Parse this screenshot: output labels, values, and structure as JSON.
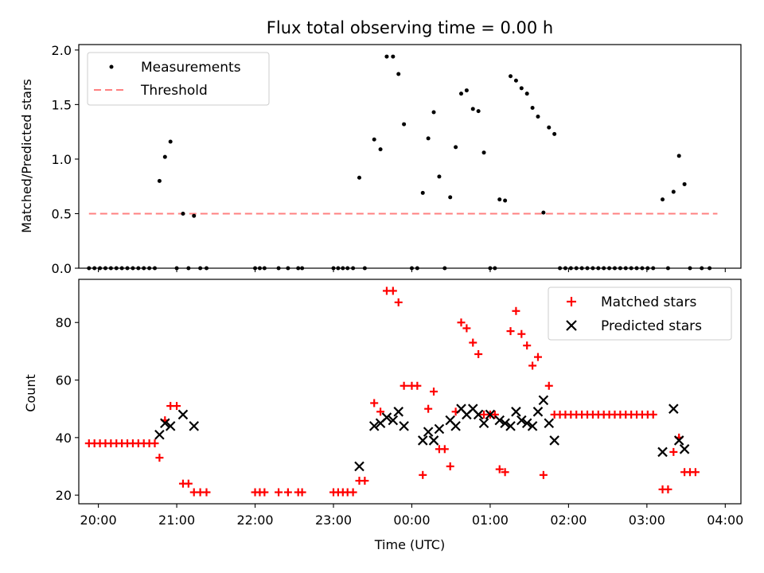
{
  "chart_data": [
    {
      "type": "scatter",
      "title": "Flux total observing time = 0.00 h",
      "ylabel": "Matched/Predicted stars",
      "xlim": [
        -0.25,
        8.2
      ],
      "ylim": [
        0,
        2.05
      ],
      "yticks": [
        0.0,
        0.5,
        1.0,
        1.5,
        2.0
      ],
      "ytick_labels": [
        "0.0",
        "0.5",
        "1.0",
        "1.5",
        "2.0"
      ],
      "xticks": [
        0,
        1,
        2,
        3,
        4,
        5,
        6,
        7,
        8
      ],
      "legend": {
        "placement": "upper-left",
        "entries": [
          "Measurements",
          "Threshold"
        ]
      },
      "threshold": {
        "name": "Threshold",
        "value": 0.5,
        "x_range": [
          -0.12,
          7.9
        ],
        "color": "#ff8080"
      },
      "series": [
        {
          "name": "Measurements",
          "color": "#000000",
          "points": [
            [
              -0.12,
              0
            ],
            [
              -0.05,
              0
            ],
            [
              0.02,
              0
            ],
            [
              0.09,
              0
            ],
            [
              0.16,
              0
            ],
            [
              0.23,
              0
            ],
            [
              0.3,
              0
            ],
            [
              0.37,
              0
            ],
            [
              0.44,
              0
            ],
            [
              0.51,
              0
            ],
            [
              0.58,
              0
            ],
            [
              0.65,
              0
            ],
            [
              0.72,
              0
            ],
            [
              0.78,
              0.8
            ],
            [
              0.85,
              1.02
            ],
            [
              0.92,
              1.16
            ],
            [
              1.0,
              0
            ],
            [
              1.08,
              0.5
            ],
            [
              1.15,
              0
            ],
            [
              1.22,
              0.48
            ],
            [
              1.3,
              0
            ],
            [
              1.38,
              0
            ],
            [
              2.0,
              0
            ],
            [
              2.06,
              0
            ],
            [
              2.12,
              0
            ],
            [
              2.3,
              0
            ],
            [
              2.42,
              0
            ],
            [
              2.55,
              0
            ],
            [
              2.6,
              0
            ],
            [
              3.0,
              0
            ],
            [
              3.06,
              0
            ],
            [
              3.12,
              0
            ],
            [
              3.18,
              0
            ],
            [
              3.25,
              0
            ],
            [
              3.33,
              0.83
            ],
            [
              3.4,
              0
            ],
            [
              3.52,
              1.18
            ],
            [
              3.6,
              1.09
            ],
            [
              3.68,
              1.94
            ],
            [
              3.76,
              1.94
            ],
            [
              3.83,
              1.78
            ],
            [
              3.9,
              1.32
            ],
            [
              4.0,
              0
            ],
            [
              4.07,
              0
            ],
            [
              4.14,
              0.69
            ],
            [
              4.21,
              1.19
            ],
            [
              4.28,
              1.43
            ],
            [
              4.35,
              0.84
            ],
            [
              4.42,
              0
            ],
            [
              4.49,
              0.65
            ],
            [
              4.56,
              1.11
            ],
            [
              4.63,
              1.6
            ],
            [
              4.7,
              1.63
            ],
            [
              4.78,
              1.46
            ],
            [
              4.85,
              1.44
            ],
            [
              4.92,
              1.06
            ],
            [
              5.0,
              0
            ],
            [
              5.06,
              0
            ],
            [
              5.12,
              0.63
            ],
            [
              5.19,
              0.62
            ],
            [
              5.26,
              1.76
            ],
            [
              5.33,
              1.72
            ],
            [
              5.4,
              1.65
            ],
            [
              5.47,
              1.6
            ],
            [
              5.54,
              1.47
            ],
            [
              5.61,
              1.39
            ],
            [
              5.68,
              0.51
            ],
            [
              5.75,
              1.29
            ],
            [
              5.82,
              1.23
            ],
            [
              5.89,
              0
            ],
            [
              5.96,
              0
            ],
            [
              6.03,
              0
            ],
            [
              6.1,
              0
            ],
            [
              6.17,
              0
            ],
            [
              6.24,
              0
            ],
            [
              6.31,
              0
            ],
            [
              6.38,
              0
            ],
            [
              6.45,
              0
            ],
            [
              6.52,
              0
            ],
            [
              6.59,
              0
            ],
            [
              6.66,
              0
            ],
            [
              6.73,
              0
            ],
            [
              6.8,
              0
            ],
            [
              6.87,
              0
            ],
            [
              6.94,
              0
            ],
            [
              7.01,
              0
            ],
            [
              7.08,
              0
            ],
            [
              7.2,
              0.63
            ],
            [
              7.27,
              0
            ],
            [
              7.34,
              0.7
            ],
            [
              7.41,
              1.03
            ],
            [
              7.48,
              0.77
            ],
            [
              7.55,
              0
            ],
            [
              7.7,
              0
            ],
            [
              7.8,
              0
            ]
          ]
        }
      ]
    },
    {
      "type": "scatter",
      "ylabel": "Count",
      "xlabel": "Time (UTC)",
      "xlim": [
        -0.25,
        8.2
      ],
      "ylim": [
        17,
        95
      ],
      "yticks": [
        20,
        40,
        60,
        80
      ],
      "ytick_labels": [
        "20",
        "40",
        "60",
        "80"
      ],
      "xticks": [
        0,
        1,
        2,
        3,
        4,
        5,
        6,
        7,
        8
      ],
      "xtick_labels": [
        "20:00",
        "21:00",
        "22:00",
        "23:00",
        "00:00",
        "01:00",
        "02:00",
        "03:00",
        "04:00"
      ],
      "legend": {
        "placement": "upper-right",
        "entries": [
          "Matched stars",
          "Predicted stars"
        ]
      },
      "series": [
        {
          "name": "Matched stars",
          "marker": "plus",
          "color": "#ff0000",
          "points": [
            [
              -0.12,
              38
            ],
            [
              -0.05,
              38
            ],
            [
              0.02,
              38
            ],
            [
              0.09,
              38
            ],
            [
              0.16,
              38
            ],
            [
              0.23,
              38
            ],
            [
              0.3,
              38
            ],
            [
              0.37,
              38
            ],
            [
              0.44,
              38
            ],
            [
              0.51,
              38
            ],
            [
              0.58,
              38
            ],
            [
              0.65,
              38
            ],
            [
              0.72,
              38
            ],
            [
              0.78,
              33
            ],
            [
              0.85,
              46
            ],
            [
              0.92,
              51
            ],
            [
              1.0,
              51
            ],
            [
              1.08,
              24
            ],
            [
              1.15,
              24
            ],
            [
              1.22,
              21
            ],
            [
              1.3,
              21
            ],
            [
              1.38,
              21
            ],
            [
              2.0,
              21
            ],
            [
              2.06,
              21
            ],
            [
              2.12,
              21
            ],
            [
              2.3,
              21
            ],
            [
              2.42,
              21
            ],
            [
              2.55,
              21
            ],
            [
              2.6,
              21
            ],
            [
              3.0,
              21
            ],
            [
              3.06,
              21
            ],
            [
              3.12,
              21
            ],
            [
              3.18,
              21
            ],
            [
              3.25,
              21
            ],
            [
              3.33,
              25
            ],
            [
              3.4,
              25
            ],
            [
              3.52,
              52
            ],
            [
              3.6,
              49
            ],
            [
              3.68,
              91
            ],
            [
              3.76,
              91
            ],
            [
              3.83,
              87
            ],
            [
              3.9,
              58
            ],
            [
              4.0,
              58
            ],
            [
              4.07,
              58
            ],
            [
              4.14,
              27
            ],
            [
              4.21,
              50
            ],
            [
              4.28,
              56
            ],
            [
              4.35,
              36
            ],
            [
              4.42,
              36
            ],
            [
              4.49,
              30
            ],
            [
              4.56,
              49
            ],
            [
              4.63,
              80
            ],
            [
              4.7,
              78
            ],
            [
              4.78,
              73
            ],
            [
              4.85,
              69
            ],
            [
              4.92,
              48
            ],
            [
              5.0,
              48
            ],
            [
              5.06,
              48
            ],
            [
              5.12,
              29
            ],
            [
              5.19,
              28
            ],
            [
              5.26,
              77
            ],
            [
              5.33,
              84
            ],
            [
              5.4,
              76
            ],
            [
              5.47,
              72
            ],
            [
              5.54,
              65
            ],
            [
              5.61,
              68
            ],
            [
              5.68,
              27
            ],
            [
              5.75,
              58
            ],
            [
              5.82,
              48
            ],
            [
              5.89,
              48
            ],
            [
              5.96,
              48
            ],
            [
              6.03,
              48
            ],
            [
              6.1,
              48
            ],
            [
              6.17,
              48
            ],
            [
              6.24,
              48
            ],
            [
              6.31,
              48
            ],
            [
              6.38,
              48
            ],
            [
              6.45,
              48
            ],
            [
              6.52,
              48
            ],
            [
              6.59,
              48
            ],
            [
              6.66,
              48
            ],
            [
              6.73,
              48
            ],
            [
              6.8,
              48
            ],
            [
              6.87,
              48
            ],
            [
              6.94,
              48
            ],
            [
              7.01,
              48
            ],
            [
              7.08,
              48
            ],
            [
              7.2,
              22
            ],
            [
              7.27,
              22
            ],
            [
              7.34,
              35
            ],
            [
              7.41,
              40
            ],
            [
              7.48,
              28
            ],
            [
              7.55,
              28
            ],
            [
              7.62,
              28
            ]
          ]
        },
        {
          "name": "Predicted stars",
          "marker": "x",
          "color": "#000000",
          "points": [
            [
              0.78,
              41
            ],
            [
              0.85,
              45
            ],
            [
              0.92,
              44
            ],
            [
              1.08,
              48
            ],
            [
              1.22,
              44
            ],
            [
              3.33,
              30
            ],
            [
              3.52,
              44
            ],
            [
              3.6,
              45
            ],
            [
              3.68,
              47
            ],
            [
              3.76,
              46
            ],
            [
              3.83,
              49
            ],
            [
              3.9,
              44
            ],
            [
              4.14,
              39
            ],
            [
              4.21,
              42
            ],
            [
              4.28,
              39
            ],
            [
              4.35,
              43
            ],
            [
              4.49,
              46
            ],
            [
              4.56,
              44
            ],
            [
              4.63,
              50
            ],
            [
              4.7,
              48
            ],
            [
              4.78,
              50
            ],
            [
              4.85,
              48
            ],
            [
              4.92,
              45
            ],
            [
              5.0,
              48
            ],
            [
              5.12,
              46
            ],
            [
              5.19,
              45
            ],
            [
              5.26,
              44
            ],
            [
              5.33,
              49
            ],
            [
              5.4,
              46
            ],
            [
              5.47,
              45
            ],
            [
              5.54,
              44
            ],
            [
              5.61,
              49
            ],
            [
              5.68,
              53
            ],
            [
              5.75,
              45
            ],
            [
              5.82,
              39
            ],
            [
              7.2,
              35
            ],
            [
              7.34,
              50
            ],
            [
              7.41,
              39
            ],
            [
              7.48,
              36
            ]
          ]
        }
      ]
    }
  ]
}
